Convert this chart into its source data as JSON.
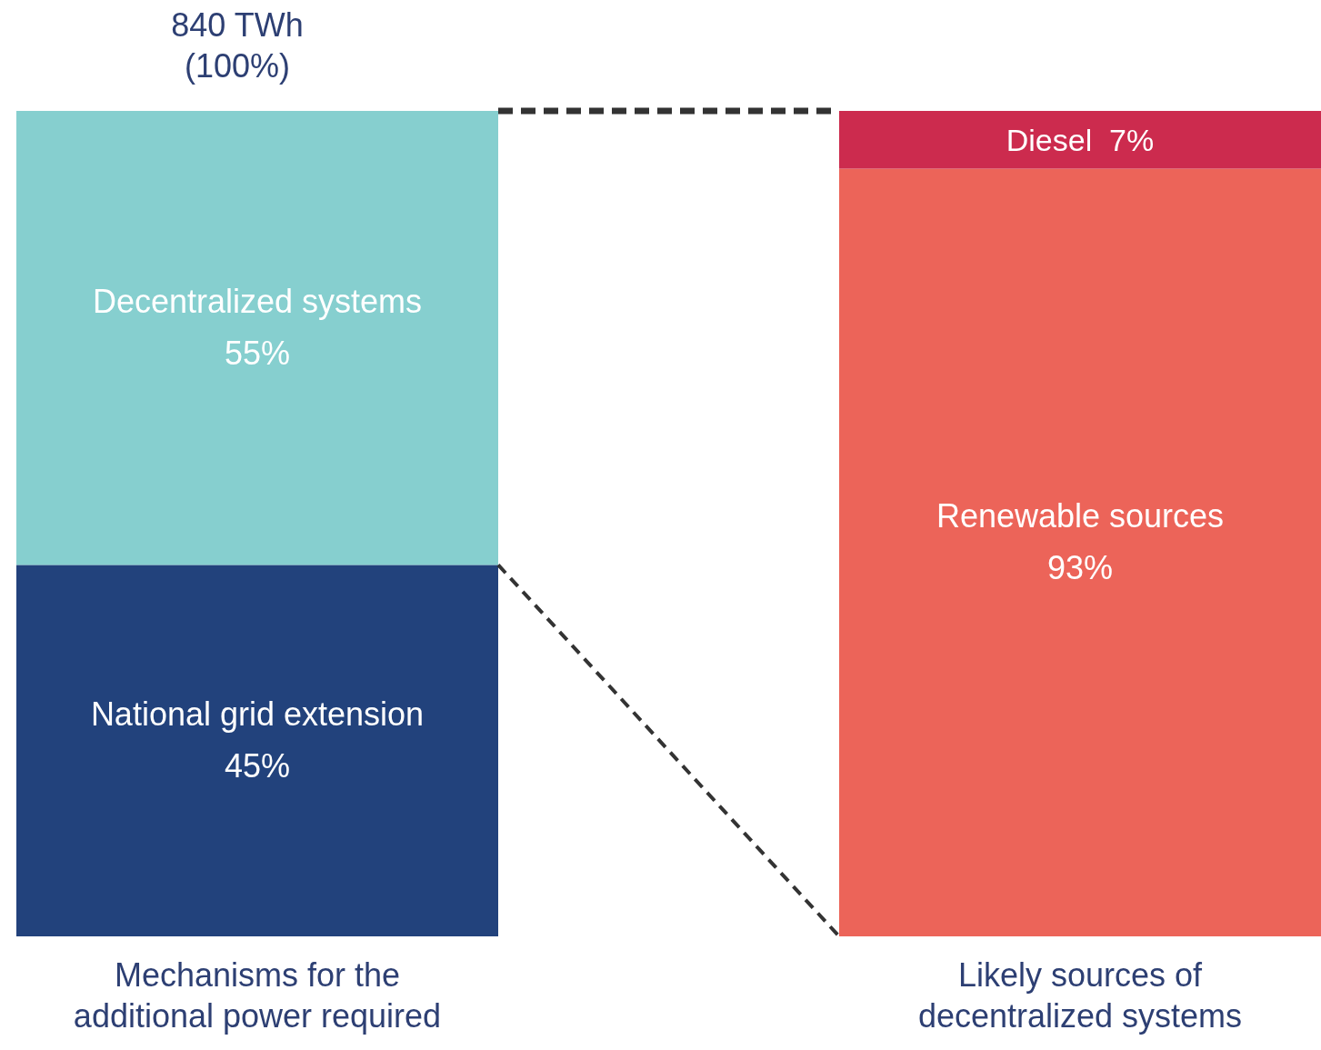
{
  "chart_data": {
    "type": "bar",
    "stacked": true,
    "categories": [
      "Mechanisms for the additional power required",
      "Likely sources of decentralized systems"
    ],
    "series": [
      {
        "name": "National grid extension",
        "color": "#22427c",
        "values": [
          45,
          null
        ],
        "value_labels": [
          "45%",
          null
        ]
      },
      {
        "name": "Decentralized systems",
        "color": "#86cfcf",
        "values": [
          55,
          null
        ],
        "value_labels": [
          "55%",
          null
        ]
      },
      {
        "name": "Renewable sources",
        "color": "#ec6459",
        "values": [
          null,
          93
        ],
        "value_labels": [
          null,
          "93%"
        ]
      },
      {
        "name": "Diesel",
        "color": "#cc2b4e",
        "values": [
          null,
          7
        ],
        "value_labels": [
          null,
          "7%"
        ]
      }
    ],
    "annotations": [
      {
        "text": "840 TWh\n(100%)",
        "x": "Mechanisms for the additional power required",
        "y": 100
      }
    ]
  }
}
